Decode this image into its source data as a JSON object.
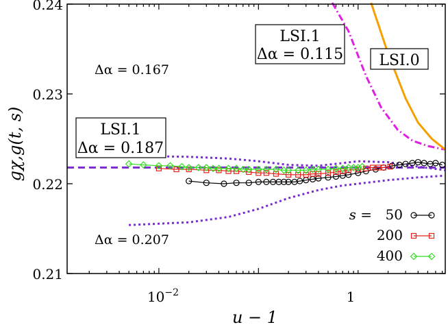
{
  "chart_data": {
    "type": "line",
    "title": "",
    "xlabel": "u − 1",
    "ylabel": "gχ,g(t, s)",
    "xscale": "log",
    "xlim": [
      0.0012,
      7.5
    ],
    "ylim": [
      0.21,
      0.24
    ],
    "x_ticks": [
      {
        "value": 0.01,
        "base": "10",
        "exp": "−2"
      },
      {
        "value": 1,
        "base": "1",
        "exp": ""
      }
    ],
    "y_ticks": [
      {
        "value": 0.21,
        "label": "0.21"
      },
      {
        "value": 0.22,
        "label": "0.22"
      },
      {
        "value": 0.23,
        "label": "0.23"
      },
      {
        "value": 0.24,
        "label": "0.24"
      }
    ],
    "grid": false,
    "legend": {
      "placement": "bottom-right",
      "prefix": "s = ",
      "entries": [
        "50",
        "200",
        "400"
      ]
    },
    "series": [
      {
        "name": "50",
        "color": "#000000",
        "marker": "circle",
        "points": [
          [
            0.02,
            0.2203
          ],
          [
            0.03,
            0.2201
          ],
          [
            0.045,
            0.22
          ],
          [
            0.06,
            0.2201
          ],
          [
            0.08,
            0.2201
          ],
          [
            0.1,
            0.2202
          ],
          [
            0.12,
            0.2202
          ],
          [
            0.14,
            0.2202
          ],
          [
            0.16,
            0.2202
          ],
          [
            0.18,
            0.2202
          ],
          [
            0.2,
            0.2202
          ],
          [
            0.23,
            0.2202
          ],
          [
            0.26,
            0.2203
          ],
          [
            0.3,
            0.2204
          ],
          [
            0.35,
            0.2205
          ],
          [
            0.4,
            0.2206
          ],
          [
            0.5,
            0.2207
          ],
          [
            0.6,
            0.2208
          ],
          [
            0.7,
            0.2209
          ],
          [
            0.8,
            0.221
          ],
          [
            1.0,
            0.2212
          ],
          [
            1.2,
            0.2214
          ],
          [
            1.5,
            0.2216
          ],
          [
            1.8,
            0.2218
          ],
          [
            2.2,
            0.222
          ],
          [
            2.6,
            0.2221
          ],
          [
            3.0,
            0.2222
          ],
          [
            3.5,
            0.2223
          ],
          [
            4.0,
            0.2224
          ],
          [
            4.6,
            0.2223
          ],
          [
            5.3,
            0.2222
          ],
          [
            6.0,
            0.2223
          ],
          [
            7.0,
            0.2221
          ]
        ]
      },
      {
        "name": "200",
        "color": "#e8201c",
        "marker": "square",
        "points": [
          [
            0.01,
            0.2217
          ],
          [
            0.015,
            0.2216
          ],
          [
            0.02,
            0.2216
          ],
          [
            0.03,
            0.2215
          ],
          [
            0.04,
            0.2215
          ],
          [
            0.05,
            0.2214
          ],
          [
            0.06,
            0.2214
          ],
          [
            0.08,
            0.2213
          ],
          [
            0.1,
            0.2212
          ],
          [
            0.12,
            0.2212
          ],
          [
            0.15,
            0.2211
          ],
          [
            0.2,
            0.221
          ],
          [
            0.25,
            0.221
          ],
          [
            0.3,
            0.221
          ],
          [
            0.35,
            0.2211
          ],
          [
            0.4,
            0.2211
          ],
          [
            0.5,
            0.2212
          ],
          [
            0.6,
            0.2213
          ],
          [
            0.7,
            0.2214
          ],
          [
            0.8,
            0.2215
          ],
          [
            1.0,
            0.2216
          ],
          [
            1.2,
            0.2217
          ],
          [
            1.4,
            0.2218
          ],
          [
            1.6,
            0.2218
          ],
          [
            1.8,
            0.2218
          ],
          [
            2.1,
            0.2219
          ]
        ]
      },
      {
        "name": "400",
        "color": "#33dd22",
        "marker": "diamond",
        "points": [
          [
            0.005,
            0.2222
          ],
          [
            0.007,
            0.2221
          ],
          [
            0.01,
            0.222
          ],
          [
            0.013,
            0.222
          ],
          [
            0.017,
            0.2219
          ],
          [
            0.02,
            0.2218
          ],
          [
            0.025,
            0.2218
          ],
          [
            0.03,
            0.2218
          ],
          [
            0.035,
            0.2217
          ],
          [
            0.04,
            0.2217
          ],
          [
            0.05,
            0.2217
          ],
          [
            0.06,
            0.2217
          ],
          [
            0.07,
            0.2216
          ],
          [
            0.08,
            0.2216
          ],
          [
            0.1,
            0.2216
          ],
          [
            0.12,
            0.2216
          ],
          [
            0.15,
            0.2216
          ],
          [
            0.18,
            0.2215
          ],
          [
            0.2,
            0.2215
          ],
          [
            0.25,
            0.2215
          ],
          [
            0.3,
            0.2215
          ],
          [
            0.35,
            0.2216
          ],
          [
            0.4,
            0.2216
          ],
          [
            0.5,
            0.2216
          ],
          [
            0.6,
            0.2217
          ],
          [
            0.7,
            0.2217
          ],
          [
            0.8,
            0.2218
          ],
          [
            0.9,
            0.2218
          ],
          [
            1.0,
            0.2218
          ],
          [
            1.1,
            0.2219
          ]
        ]
      }
    ],
    "reference_curves": [
      {
        "id": "lsi1-187",
        "color": "#7a2bd0",
        "style": "dashed",
        "points": [
          [
            0.0012,
            0.2218
          ],
          [
            7.5,
            0.2218
          ]
        ]
      },
      {
        "id": "da-167",
        "color": "#7a2bd0",
        "style": "dotted",
        "points": [
          [
            0.005,
            0.2231
          ],
          [
            0.02,
            0.223
          ],
          [
            0.05,
            0.2228
          ],
          [
            0.1,
            0.2225
          ],
          [
            0.2,
            0.2221
          ],
          [
            0.4,
            0.222
          ],
          [
            0.7,
            0.2223
          ],
          [
            1.0,
            0.2225
          ],
          [
            2.0,
            0.2224
          ],
          [
            4.0,
            0.2219
          ],
          [
            7.5,
            0.2215
          ]
        ]
      }
    ],
    "annotations": [
      {
        "id": "da-167",
        "text": "Δα = 0.167"
      },
      {
        "id": "da-207",
        "text": "Δα = 0.207"
      },
      {
        "id": "lsi1-left",
        "title": "LSI.1",
        "text": "Δα = 0.187"
      },
      {
        "id": "lsi1-top",
        "title": "LSI.1",
        "text": "Δα = 0.115"
      },
      {
        "id": "lsi0",
        "title": "LSI.0"
      }
    ],
    "colors": {
      "dotted": "#7a2bd0",
      "dashed": "#7a2bd0",
      "dashdot": "#e020e0",
      "solid": "#f5a000"
    }
  }
}
